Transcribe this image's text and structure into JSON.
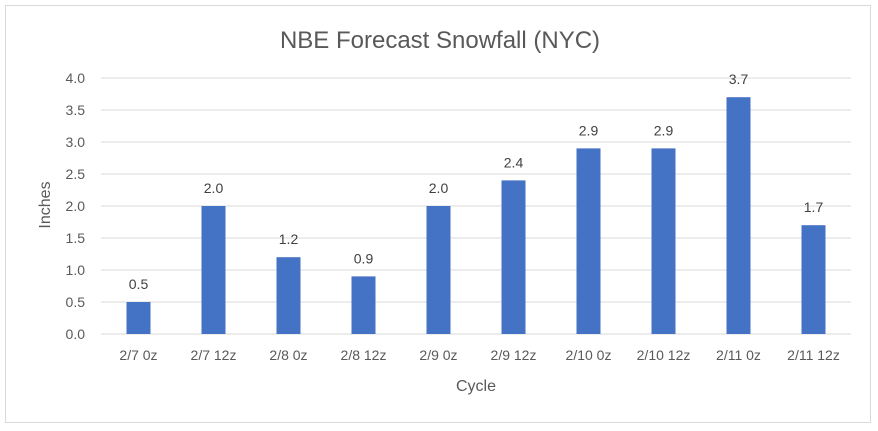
{
  "chart_data": {
    "type": "bar",
    "title": "NBE Forecast Snowfall (NYC)",
    "xlabel": "Cycle",
    "ylabel": "Inches",
    "categories": [
      "2/7 0z",
      "2/7 12z",
      "2/8 0z",
      "2/8 12z",
      "2/9 0z",
      "2/9 12z",
      "2/10 0z",
      "2/10 12z",
      "2/11 0z",
      "2/11 12z"
    ],
    "values": [
      0.5,
      2.0,
      1.2,
      0.9,
      2.0,
      2.4,
      2.9,
      2.9,
      3.7,
      1.7
    ],
    "data_labels": [
      "0.5",
      "2.0",
      "1.2",
      "0.9",
      "2.0",
      "2.4",
      "2.9",
      "2.9",
      "3.7",
      "1.7"
    ],
    "yticks": [
      "0.0",
      "0.5",
      "1.0",
      "1.5",
      "2.0",
      "2.5",
      "3.0",
      "3.5",
      "4.0"
    ],
    "ylim": [
      0,
      4
    ],
    "grid": true,
    "bar_color": "#4472c4"
  }
}
